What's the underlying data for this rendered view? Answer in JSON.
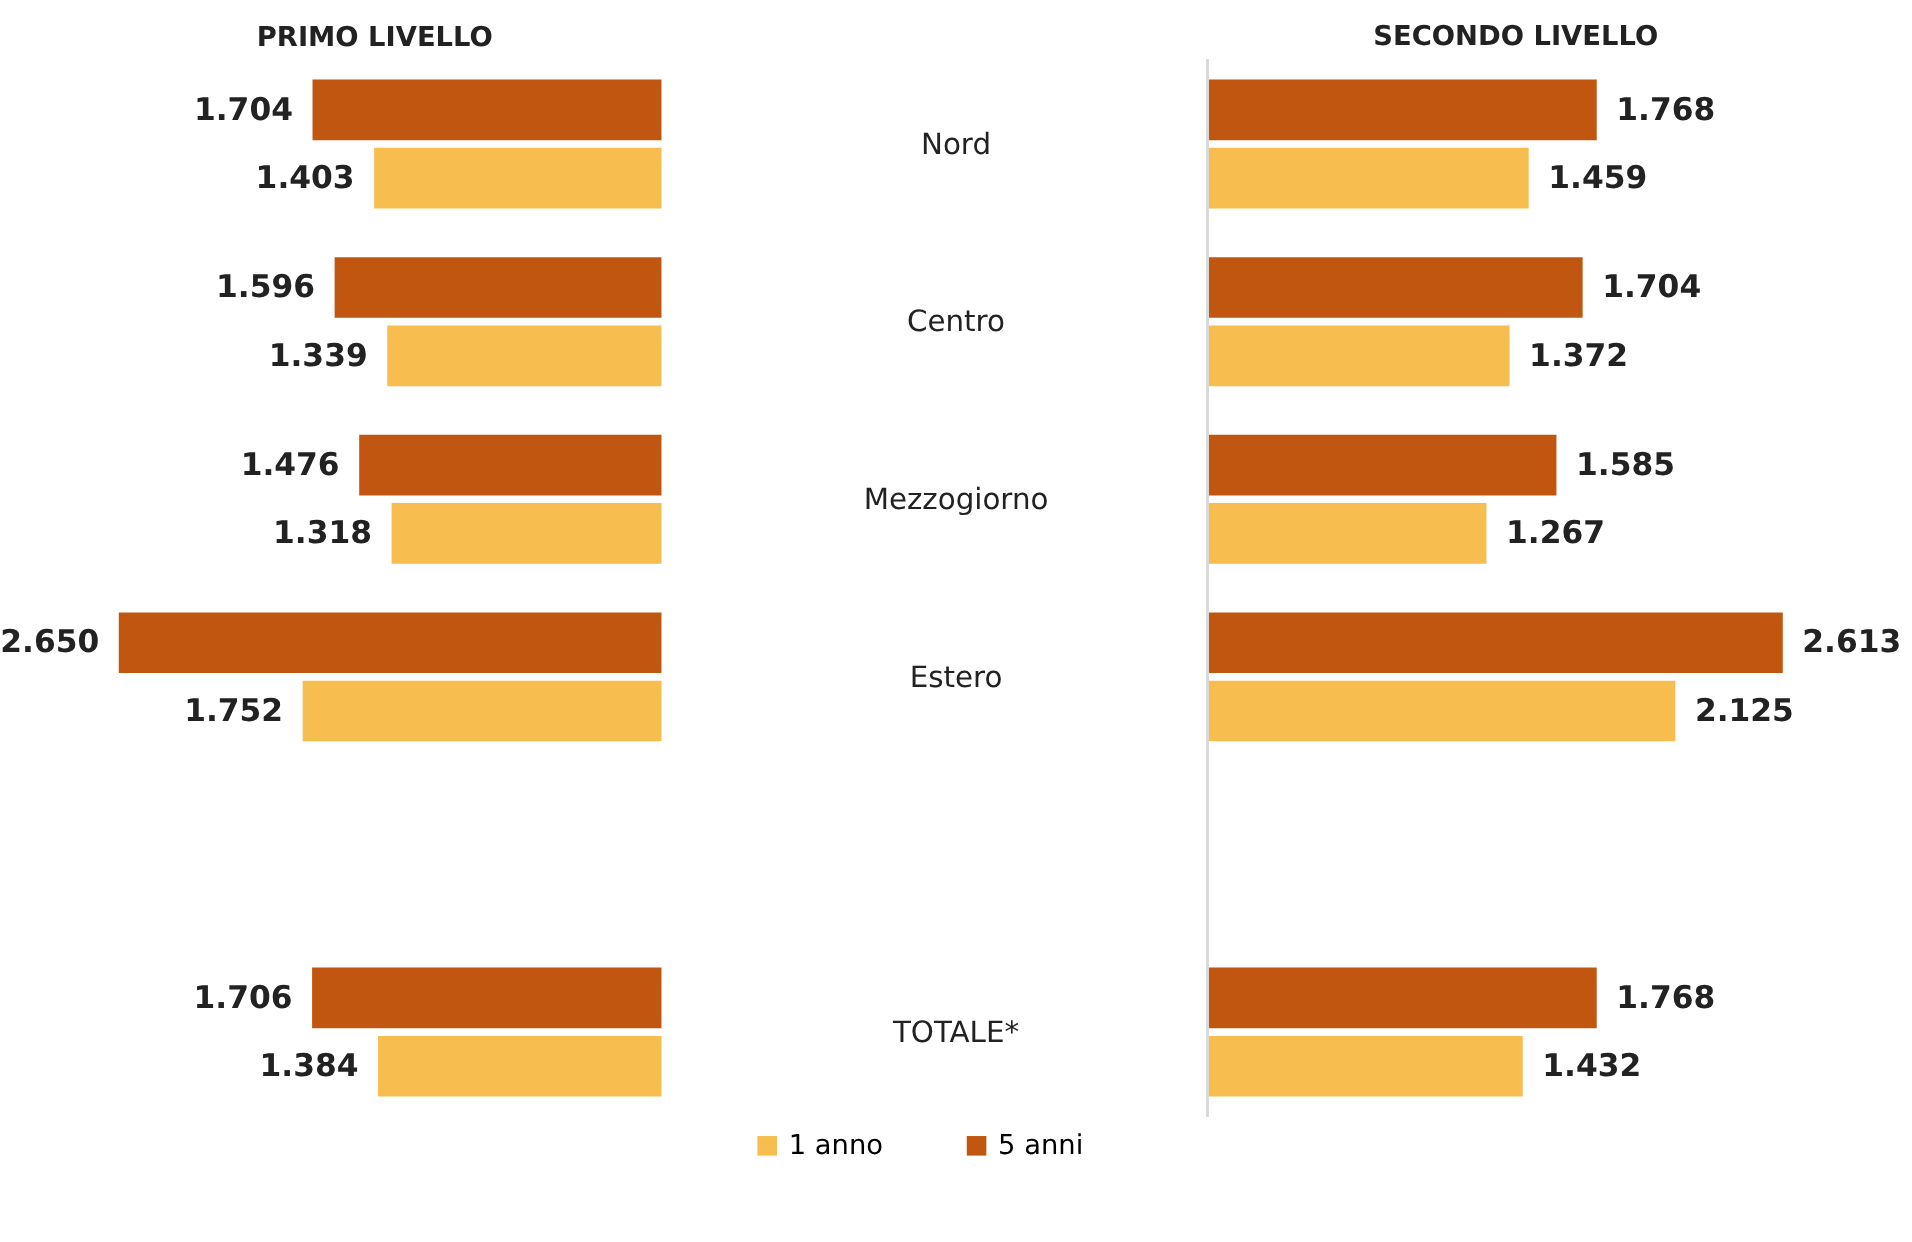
{
  "chart_data": [
    {
      "type": "bar",
      "orientation": "horizontal",
      "title": "PRIMO LIVELLO",
      "categories": [
        "Nord",
        "Centro",
        "Mezzogiorno",
        "Estero",
        null,
        "TOTALE*"
      ],
      "tick_labels": "y",
      "grid": false,
      "legend": "bottom",
      "series": [
        {
          "name": "5 anni",
          "color": "#c0560f",
          "values": [
            1704,
            1596,
            1476,
            2650,
            null,
            1706
          ],
          "value_labels": [
            "1.704",
            "1.596",
            "1.476",
            "2.650",
            null,
            "1.706"
          ]
        },
        {
          "name": "1 anno",
          "color": "#f7bd4f",
          "values": [
            1403,
            1339,
            1318,
            1752,
            null,
            1384
          ],
          "value_labels": [
            "1.403",
            "1.339",
            "1.318",
            "1.752",
            null,
            "1.384"
          ]
        }
      ]
    },
    {
      "type": "bar",
      "orientation": "horizontal",
      "title": "SECONDO LIVELLO",
      "categories": [
        "Nord",
        "Centro",
        "Mezzogiorno",
        "Estero",
        null,
        "TOTALE*"
      ],
      "tick_labels": false,
      "grid": false,
      "series": [
        {
          "name": "5 anni",
          "color": "#c0560f",
          "values": [
            1768,
            1704,
            1585,
            2613,
            null,
            1768
          ],
          "value_labels": [
            "1.768",
            "1.704",
            "1.585",
            "2.613",
            null,
            "1.768"
          ]
        },
        {
          "name": "1 anno",
          "color": "#f7bd4f",
          "values": [
            1459,
            1372,
            1267,
            2125,
            null,
            1432
          ],
          "value_labels": [
            "1.459",
            "1.372",
            "1.267",
            "2.125",
            null,
            "1.432"
          ]
        }
      ]
    }
  ]
}
